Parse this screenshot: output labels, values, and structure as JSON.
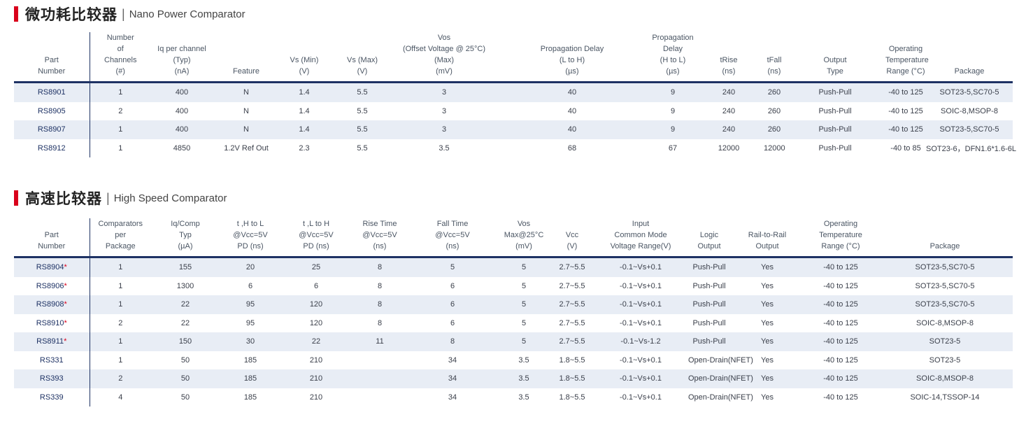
{
  "nano": {
    "title_cn": "微功耗比较器",
    "title_en": "Nano Power Comparator",
    "headers": [
      "Part\nNumber",
      "Number\nof\nChannels\n(#)",
      "Iq per channel\n(Typ)\n(nA)",
      "Feature",
      "Vs (Min)\n(V)",
      "Vs (Max)\n(V)",
      "Vos\n(Offset Voltage @ 25°C)\n(Max)\n(mV)",
      "Propagation Delay\n(L to H)\n(µs)",
      "Propagation Delay\n(H to L)\n(µs)",
      "tRise\n(ns)",
      "tFall\n(ns)",
      "Output\nType",
      "Operating\nTemperature\nRange (°C)",
      "Package"
    ],
    "rows": [
      [
        "RS8901",
        "1",
        "400",
        "N",
        "1.4",
        "5.5",
        "3",
        "40",
        "9",
        "240",
        "260",
        "Push-Pull",
        "-40 to 125",
        "SOT23-5,SC70-5"
      ],
      [
        "RS8905",
        "2",
        "400",
        "N",
        "1.4",
        "5.5",
        "3",
        "40",
        "9",
        "240",
        "260",
        "Push-Pull",
        "-40 to 125",
        "SOIC-8,MSOP-8"
      ],
      [
        "RS8907",
        "1",
        "400",
        "N",
        "1.4",
        "5.5",
        "3",
        "40",
        "9",
        "240",
        "260",
        "Push-Pull",
        "-40 to 125",
        "SOT23-5,SC70-5"
      ],
      [
        "RS8912",
        "1",
        "4850",
        "1.2V Ref Out",
        "2.3",
        "5.5",
        "3.5",
        "68",
        "67",
        "12000",
        "12000",
        "Push-Pull",
        "-40 to 85",
        "SOT23-6，DFN1.6*1.6-6L"
      ]
    ]
  },
  "highspeed": {
    "title_cn": "高速比较器",
    "title_en": "High Speed Comparator",
    "headers": [
      "Part\nNumber",
      "Comparators\nper\nPackage",
      "Iq/Comp\nTyp\n(µA)",
      "t   ,H to L\n@Vcc=5V\nPD (ns)",
      "t   ,L to H\n@Vcc=5V\nPD (ns)",
      "Rise Time\n@Vcc=5V\n(ns)",
      "Fall Time\n@Vcc=5V\n(ns)",
      "Vos\nMax@25°C\n(mV)",
      "Vcc\n(V)",
      "Input\nCommon Mode\nVoltage Range(V)",
      "Logic\nOutput",
      "Rail-to-Rail\nOutput",
      "Operating\nTemperature\nRange (°C)",
      "Package"
    ],
    "star": "*",
    "rows": [
      [
        "RS8904",
        "1",
        "155",
        "20",
        "25",
        "8",
        "5",
        "5",
        "2.7~5.5",
        "-0.1~Vs+0.1",
        "Push-Pull",
        "Yes",
        "-40 to 125",
        "SOT23-5,SC70-5"
      ],
      [
        "RS8906",
        "1",
        "1300",
        "6",
        "6",
        "8",
        "6",
        "5",
        "2.7~5.5",
        "-0.1~Vs+0.1",
        "Push-Pull",
        "Yes",
        "-40 to 125",
        "SOT23-5,SC70-5"
      ],
      [
        "RS8908",
        "1",
        "22",
        "95",
        "120",
        "8",
        "6",
        "5",
        "2.7~5.5",
        "-0.1~Vs+0.1",
        "Push-Pull",
        "Yes",
        "-40 to 125",
        "SOT23-5,SC70-5"
      ],
      [
        "RS8910",
        "2",
        "22",
        "95",
        "120",
        "8",
        "6",
        "5",
        "2.7~5.5",
        "-0.1~Vs+0.1",
        "Push-Pull",
        "Yes",
        "-40 to 125",
        "SOIC-8,MSOP-8"
      ],
      [
        "RS8911",
        "1",
        "150",
        "30",
        "22",
        "11",
        "8",
        "5",
        "2.7~5.5",
        "-0.1~Vs-1.2",
        "Push-Pull",
        "Yes",
        "-40 to 125",
        "SOT23-5"
      ],
      [
        "RS331",
        "1",
        "50",
        "185",
        "210",
        "",
        "34",
        "3.5",
        "1.8~5.5",
        "-0.1~Vs+0.1",
        "Open-Drain(NFET)",
        "Yes",
        "-40 to 125",
        "SOT23-5"
      ],
      [
        "RS393",
        "2",
        "50",
        "185",
        "210",
        "",
        "34",
        "3.5",
        "1.8~5.5",
        "-0.1~Vs+0.1",
        "Open-Drain(NFET)",
        "Yes",
        "-40 to 125",
        "SOIC-8,MSOP-8"
      ],
      [
        "RS339",
        "4",
        "50",
        "185",
        "210",
        "",
        "34",
        "3.5",
        "1.8~5.5",
        "-0.1~Vs+0.1",
        "Open-Drain(NFET)",
        "Yes",
        "-40 to 125",
        "SOIC-14,TSSOP-14"
      ]
    ],
    "starred_rows": 5
  }
}
